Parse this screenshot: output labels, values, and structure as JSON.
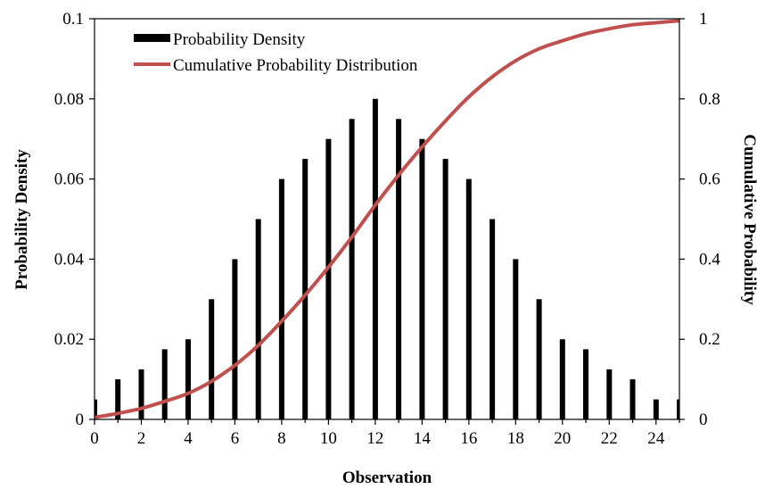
{
  "chart_data": {
    "type": "bar",
    "xlabel": "Observation",
    "ylabel": "Probability Density",
    "y2label": "Cumulative Probability",
    "xlim": [
      0,
      25
    ],
    "ylim": [
      0,
      0.1
    ],
    "y2lim": [
      0,
      1
    ],
    "xticks": [
      "0",
      "2",
      "4",
      "6",
      "8",
      "10",
      "12",
      "14",
      "16",
      "18",
      "20",
      "22",
      "24"
    ],
    "yticks": [
      "0",
      "0.02",
      "0.04",
      "0.06",
      "0.08",
      "0.1"
    ],
    "y2ticks": [
      "0",
      "0.2",
      "0.4",
      "0.6",
      "0.8",
      "1"
    ],
    "grid": false,
    "legend_position": "top-left",
    "series": [
      {
        "name": "Probability Density",
        "type": "bar",
        "axis": "left",
        "color": "#000000",
        "x": [
          0,
          1,
          2,
          3,
          4,
          5,
          6,
          7,
          8,
          9,
          10,
          11,
          12,
          13,
          14,
          15,
          16,
          17,
          18,
          19,
          20,
          21,
          22,
          23,
          24,
          25
        ],
        "values": [
          0.005,
          0.01,
          0.0125,
          0.0175,
          0.02,
          0.03,
          0.04,
          0.05,
          0.06,
          0.065,
          0.07,
          0.075,
          0.08,
          0.075,
          0.07,
          0.065,
          0.06,
          0.05,
          0.04,
          0.03,
          0.02,
          0.0175,
          0.0125,
          0.01,
          0.005,
          0.005
        ]
      },
      {
        "name": "Cumulative Probability Distribution",
        "type": "line",
        "axis": "right",
        "color": "#c0504d",
        "x": [
          0,
          1,
          2,
          3,
          4,
          5,
          6,
          7,
          8,
          9,
          10,
          11,
          12,
          13,
          14,
          15,
          16,
          17,
          18,
          19,
          20,
          21,
          22,
          23,
          24,
          25
        ],
        "values": [
          0.005,
          0.015,
          0.0275,
          0.045,
          0.065,
          0.095,
          0.135,
          0.185,
          0.245,
          0.31,
          0.38,
          0.455,
          0.535,
          0.61,
          0.68,
          0.745,
          0.805,
          0.855,
          0.895,
          0.925,
          0.945,
          0.9625,
          0.975,
          0.985,
          0.99,
          0.995
        ]
      }
    ]
  }
}
